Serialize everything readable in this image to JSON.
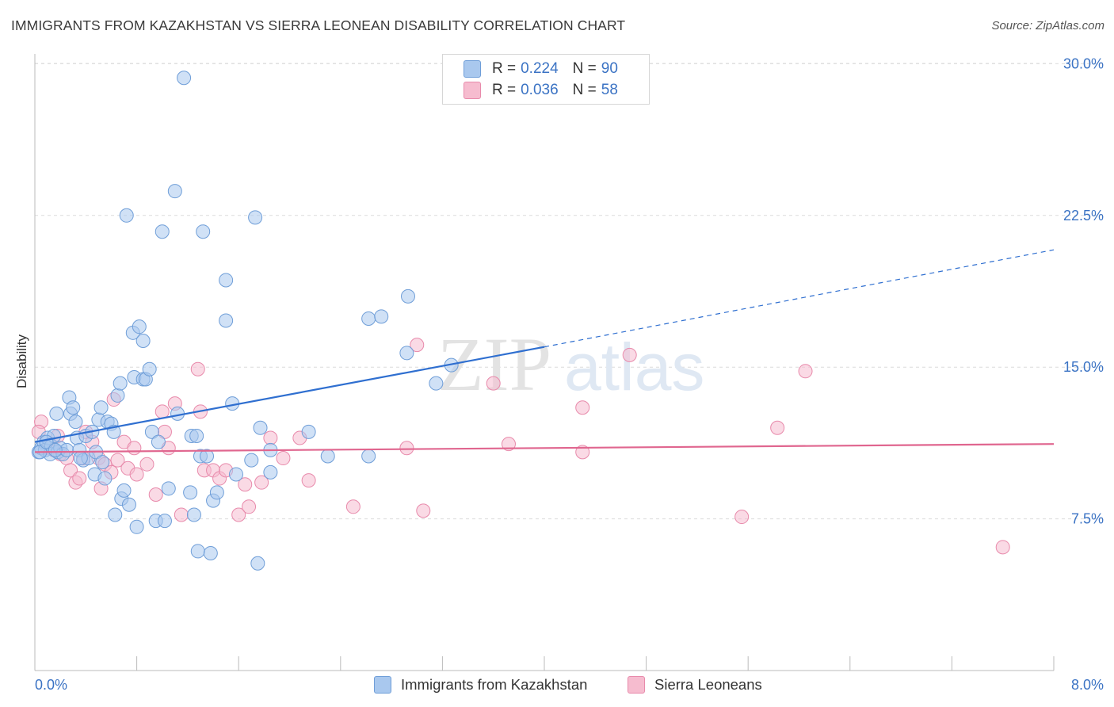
{
  "header": {
    "title": "IMMIGRANTS FROM KAZAKHSTAN VS SIERRA LEONEAN DISABILITY CORRELATION CHART",
    "source": "Source: ZipAtlas.com"
  },
  "legend_top": {
    "rows": [
      {
        "r_label": "R = ",
        "r_value": "0.224",
        "n_label": "N = ",
        "n_value": "90"
      },
      {
        "r_label": "R = ",
        "r_value": "0.036",
        "n_label": "N = ",
        "n_value": "58"
      }
    ]
  },
  "legend_bottom": {
    "items": [
      {
        "label": "Immigrants from Kazakhstan"
      },
      {
        "label": "Sierra Leoneans"
      }
    ]
  },
  "colors": {
    "series1_fill": "#a9c8ee",
    "series1_stroke": "#6f9ed8",
    "series1_line": "#2f6fd0",
    "series2_fill": "#f6bccf",
    "series2_stroke": "#e88aab",
    "series2_line": "#e0668f",
    "tick_text": "#3b73c4",
    "grid": "#dcdcdc"
  },
  "chart_data": {
    "type": "scatter",
    "title": "IMMIGRANTS FROM KAZAKHSTAN VS SIERRA LEONEAN DISABILITY CORRELATION CHART",
    "xlabel": "",
    "ylabel": "Disability",
    "xlim": [
      0,
      8
    ],
    "ylim": [
      0,
      31
    ],
    "x_tick_labels": [
      "0.0%",
      "8.0%"
    ],
    "y_ticks": [
      7.5,
      15.0,
      22.5,
      30.0
    ],
    "y_tick_labels": [
      "7.5%",
      "15.0%",
      "22.5%",
      "30.0%"
    ],
    "grid": true,
    "legend_position": "top-center",
    "watermark": "ZIPatlas",
    "series": [
      {
        "name": "Immigrants from Kazakhstan",
        "R": 0.224,
        "N": 90,
        "trend": {
          "x": [
            0.0,
            4.0
          ],
          "y": [
            11.3,
            16.0
          ],
          "dashed_to": [
            8.0,
            20.8
          ]
        },
        "points": [
          [
            0.03,
            10.8
          ],
          [
            0.05,
            11.0
          ],
          [
            0.07,
            11.3
          ],
          [
            0.08,
            10.9
          ],
          [
            0.1,
            11.5
          ],
          [
            0.12,
            10.7
          ],
          [
            0.13,
            11.1
          ],
          [
            0.15,
            11.6
          ],
          [
            0.17,
            12.7
          ],
          [
            0.18,
            10.8
          ],
          [
            0.2,
            11.0
          ],
          [
            0.22,
            10.7
          ],
          [
            0.25,
            10.9
          ],
          [
            0.27,
            13.5
          ],
          [
            0.28,
            12.7
          ],
          [
            0.3,
            13.0
          ],
          [
            0.32,
            12.3
          ],
          [
            0.33,
            11.5
          ],
          [
            0.35,
            10.9
          ],
          [
            0.38,
            10.4
          ],
          [
            0.4,
            11.6
          ],
          [
            0.42,
            10.5
          ],
          [
            0.45,
            11.8
          ],
          [
            0.47,
            9.7
          ],
          [
            0.48,
            10.8
          ],
          [
            0.5,
            12.4
          ],
          [
            0.52,
            13.0
          ],
          [
            0.53,
            10.3
          ],
          [
            0.55,
            9.5
          ],
          [
            0.57,
            12.3
          ],
          [
            0.6,
            12.2
          ],
          [
            0.62,
            11.8
          ],
          [
            0.63,
            7.7
          ],
          [
            0.65,
            13.6
          ],
          [
            0.67,
            14.2
          ],
          [
            0.68,
            8.5
          ],
          [
            0.7,
            8.9
          ],
          [
            0.72,
            22.5
          ],
          [
            0.74,
            8.2
          ],
          [
            0.77,
            16.7
          ],
          [
            0.78,
            14.5
          ],
          [
            0.8,
            7.1
          ],
          [
            0.82,
            17.0
          ],
          [
            0.85,
            16.3
          ],
          [
            0.85,
            14.4
          ],
          [
            0.87,
            14.4
          ],
          [
            0.9,
            14.9
          ],
          [
            0.92,
            11.8
          ],
          [
            0.95,
            7.4
          ],
          [
            0.97,
            11.3
          ],
          [
            1.0,
            21.7
          ],
          [
            1.02,
            7.4
          ],
          [
            1.05,
            9.0
          ],
          [
            1.1,
            23.7
          ],
          [
            1.12,
            12.7
          ],
          [
            1.17,
            29.3
          ],
          [
            1.22,
            8.8
          ],
          [
            1.23,
            11.6
          ],
          [
            1.25,
            7.7
          ],
          [
            1.27,
            11.6
          ],
          [
            1.28,
            5.9
          ],
          [
            1.3,
            10.6
          ],
          [
            1.32,
            21.7
          ],
          [
            1.35,
            10.6
          ],
          [
            1.38,
            5.8
          ],
          [
            1.4,
            8.4
          ],
          [
            1.43,
            8.8
          ],
          [
            1.5,
            19.3
          ],
          [
            1.5,
            17.3
          ],
          [
            1.55,
            13.2
          ],
          [
            1.58,
            9.7
          ],
          [
            1.7,
            10.4
          ],
          [
            1.73,
            22.4
          ],
          [
            1.75,
            5.3
          ],
          [
            1.77,
            12.0
          ],
          [
            1.85,
            10.9
          ],
          [
            1.85,
            9.8
          ],
          [
            2.15,
            11.8
          ],
          [
            2.3,
            10.6
          ],
          [
            2.62,
            17.4
          ],
          [
            2.72,
            17.5
          ],
          [
            2.62,
            10.6
          ],
          [
            2.92,
            15.7
          ],
          [
            2.93,
            18.5
          ],
          [
            3.15,
            14.2
          ],
          [
            3.27,
            15.1
          ],
          [
            0.04,
            10.8
          ],
          [
            0.09,
            11.3
          ],
          [
            0.16,
            10.9
          ],
          [
            0.36,
            10.5
          ]
        ]
      },
      {
        "name": "Sierra Leoneans",
        "R": 0.036,
        "N": 58,
        "trend": {
          "x": [
            0.0,
            8.0
          ],
          "y": [
            10.8,
            11.2
          ]
        },
        "points": [
          [
            0.05,
            12.3
          ],
          [
            0.1,
            11.0
          ],
          [
            0.12,
            11.2
          ],
          [
            0.15,
            10.9
          ],
          [
            0.18,
            11.6
          ],
          [
            0.2,
            10.7
          ],
          [
            0.25,
            10.5
          ],
          [
            0.28,
            9.9
          ],
          [
            0.32,
            9.3
          ],
          [
            0.35,
            9.5
          ],
          [
            0.38,
            10.5
          ],
          [
            0.4,
            11.8
          ],
          [
            0.45,
            11.3
          ],
          [
            0.5,
            10.5
          ],
          [
            0.52,
            9.0
          ],
          [
            0.55,
            10.2
          ],
          [
            0.6,
            9.8
          ],
          [
            0.62,
            13.4
          ],
          [
            0.65,
            10.4
          ],
          [
            0.7,
            11.3
          ],
          [
            0.73,
            10.0
          ],
          [
            0.78,
            11.0
          ],
          [
            0.8,
            9.7
          ],
          [
            0.88,
            10.2
          ],
          [
            0.95,
            8.7
          ],
          [
            1.0,
            12.8
          ],
          [
            1.02,
            11.8
          ],
          [
            1.05,
            11.0
          ],
          [
            1.1,
            13.2
          ],
          [
            1.15,
            7.7
          ],
          [
            1.28,
            14.9
          ],
          [
            1.3,
            12.8
          ],
          [
            1.33,
            9.9
          ],
          [
            1.4,
            9.9
          ],
          [
            1.45,
            9.5
          ],
          [
            1.5,
            9.9
          ],
          [
            1.6,
            7.7
          ],
          [
            1.65,
            9.2
          ],
          [
            1.68,
            8.1
          ],
          [
            1.78,
            9.3
          ],
          [
            1.85,
            11.5
          ],
          [
            1.95,
            10.5
          ],
          [
            2.08,
            11.5
          ],
          [
            2.15,
            9.4
          ],
          [
            2.5,
            8.1
          ],
          [
            2.92,
            11.0
          ],
          [
            3.0,
            16.1
          ],
          [
            3.05,
            7.9
          ],
          [
            3.6,
            14.2
          ],
          [
            3.72,
            11.2
          ],
          [
            4.3,
            13.0
          ],
          [
            4.3,
            10.8
          ],
          [
            4.67,
            15.6
          ],
          [
            5.55,
            7.6
          ],
          [
            5.83,
            12.0
          ],
          [
            6.05,
            14.8
          ],
          [
            7.6,
            6.1
          ],
          [
            0.03,
            11.8
          ]
        ]
      }
    ]
  }
}
